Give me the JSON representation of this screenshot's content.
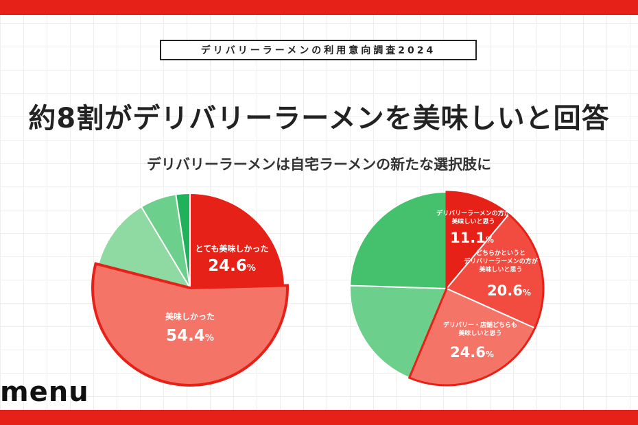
{
  "header": {
    "survey_badge": "デリバリーラーメンの利用意向調査2024",
    "headline": "約8割がデリバリーラーメンを美味しいと回答",
    "subhead": "デリバリーラーメンは自宅ラーメンの新たな選択肢に"
  },
  "brand": {
    "logo_text": "menu"
  },
  "colors": {
    "brand_red": "#e62117",
    "pie1": [
      "#e62117",
      "#f47468",
      "#8fdaa2",
      "#6ccf8c",
      "#1fb25a"
    ],
    "pie2": [
      "#e62117",
      "#f24b3f",
      "#f47468",
      "#6ccf8c",
      "#45c06c"
    ]
  },
  "chart_data": [
    {
      "type": "pie",
      "slices": [
        {
          "label": "とても美味しかった",
          "value": 24.6,
          "value_text": "24.6",
          "unit": "%"
        },
        {
          "label": "美味しかった",
          "value": 54.4,
          "value_text": "54.4",
          "unit": "%"
        },
        {
          "label": "",
          "value": 12.4
        },
        {
          "label": "",
          "value": 6.2
        },
        {
          "label": "",
          "value": 2.4
        }
      ]
    },
    {
      "type": "pie",
      "slices": [
        {
          "label": "デリバリーラーメンの方が\n美味しいと思う",
          "value": 11.1,
          "value_text": "11.1",
          "unit": "%"
        },
        {
          "label": "どちらかというと\nデリバリーラーメンの方が\n美味しいと思う",
          "value": 20.6,
          "value_text": "20.6",
          "unit": "%"
        },
        {
          "label": "デリバリー・店舗どちらも\n美味しいと思う",
          "value": 24.6,
          "value_text": "24.6",
          "unit": "%"
        },
        {
          "label": "",
          "value": 19.2
        },
        {
          "label": "",
          "value": 24.5
        }
      ]
    }
  ]
}
